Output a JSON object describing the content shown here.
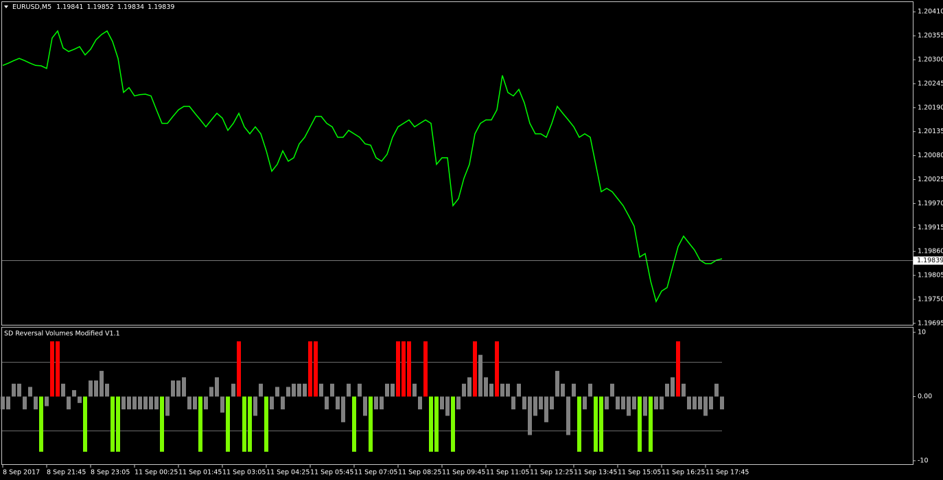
{
  "chart_data": [
    {
      "type": "line",
      "symbol": "EURUSD,M5",
      "ohlc": [
        1.19841,
        1.19852,
        1.19834,
        1.19839
      ],
      "color": "#00ff00",
      "values": [
        1.20287,
        1.20292,
        1.20298,
        1.20303,
        1.20298,
        1.20292,
        1.20287,
        1.20286,
        1.2028,
        1.2035,
        1.20366,
        1.20327,
        1.20319,
        1.20324,
        1.2033,
        1.20311,
        1.20324,
        1.20346,
        1.20358,
        1.20366,
        1.20342,
        1.20303,
        1.20225,
        1.20236,
        1.20217,
        1.2022,
        1.20221,
        1.20217,
        1.20185,
        1.20154,
        1.20154,
        1.2017,
        1.20185,
        1.20193,
        1.20193,
        1.20177,
        1.20162,
        1.20146,
        1.20162,
        1.20177,
        1.20166,
        1.20138,
        1.20154,
        1.20177,
        1.20146,
        1.2013,
        1.20146,
        1.2013,
        1.20091,
        1.20044,
        1.2006,
        1.20091,
        1.20067,
        1.20075,
        1.20107,
        1.20122,
        1.20146,
        1.2017,
        1.2017,
        1.20154,
        1.20146,
        1.20122,
        1.20122,
        1.20138,
        1.2013,
        1.20122,
        1.20107,
        1.20104,
        1.20075,
        1.20067,
        1.20083,
        1.20122,
        1.20146,
        1.20154,
        1.20162,
        1.20146,
        1.20154,
        1.20162,
        1.20154,
        1.2006,
        1.20075,
        1.20075,
        1.19965,
        1.19981,
        1.20028,
        1.2006,
        1.2013,
        1.20154,
        1.20162,
        1.20162,
        1.20185,
        1.20264,
        1.20225,
        1.20217,
        1.20232,
        1.20201,
        1.20154,
        1.2013,
        1.2013,
        1.20122,
        1.20154,
        1.20193,
        1.20177,
        1.20162,
        1.20146,
        1.20122,
        1.2013,
        1.20122,
        1.2006,
        1.19997,
        1.20005,
        1.19997,
        1.19981,
        1.19965,
        1.19942,
        1.19918,
        1.19847,
        1.19855,
        1.19792,
        1.19745,
        1.19769,
        1.19777,
        1.19824,
        1.19871,
        1.19895,
        1.19879,
        1.19863,
        1.1984,
        1.19832,
        1.19832,
        1.1984,
        1.19843
      ],
      "current_price": 1.19839,
      "ylim": [
        1.1969,
        1.20434
      ],
      "yticks": [
        {
          "value": 1.2041,
          "label": "1.20410"
        },
        1.20355,
        {
          "value": 1.203,
          "label": "1.20300"
        },
        1.20245,
        {
          "value": 1.2019,
          "label": "1.20190"
        },
        1.20135,
        {
          "value": 1.2008,
          "label": "1.20080"
        },
        1.20025,
        {
          "value": 1.1997,
          "label": "1.19970"
        },
        1.19915,
        {
          "value": 1.1986,
          "label": "1.19860"
        },
        1.19805,
        {
          "value": 1.1975,
          "label": "1.19750"
        },
        1.19695
      ]
    },
    {
      "type": "bar",
      "title": "SD Reversal Volumes Modified V1.1",
      "ylim": [
        -10.65,
        10.75
      ],
      "yticks": [
        10,
        {
          "value": 0,
          "label": "0.00"
        },
        -10
      ],
      "levels": [
        5.35,
        -5.35
      ],
      "x_labels": [
        "8 Sep 2017",
        "8 Sep 21:45",
        "8 Sep 23:05",
        "11 Sep 00:25",
        "11 Sep 01:45",
        "11 Sep 03:05",
        "11 Sep 04:25",
        "11 Sep 05:45",
        "11 Sep 07:05",
        "11 Sep 08:25",
        "11 Sep 09:45",
        "11 Sep 11:05",
        "11 Sep 12:25",
        "11 Sep 13:45",
        "11 Sep 15:05",
        "11 Sep 16:25",
        "11 Sep 17:45"
      ],
      "series": [
        {
          "color": "#808080",
          "values": [
            -2,
            -2,
            2,
            2,
            -2,
            1.5,
            -2,
            null,
            -1.5,
            null,
            null,
            2,
            -2,
            1,
            -1,
            null,
            2.5,
            2.5,
            4,
            2,
            null,
            null,
            -2,
            -2,
            -2,
            -2,
            -2,
            -2,
            -2,
            null,
            -3,
            2.5,
            2.5,
            3,
            -2,
            -2,
            null,
            -2,
            1.5,
            3,
            -2.5,
            null,
            2,
            null,
            null,
            null,
            -3,
            2,
            null,
            -2,
            1.5,
            -2,
            1.5,
            2,
            2,
            2,
            null,
            null,
            2,
            -2,
            2,
            -2,
            -4,
            2,
            null,
            2,
            -3,
            null,
            -2,
            -2,
            2,
            2,
            null,
            null,
            null,
            2,
            -2,
            null,
            null,
            null,
            -2,
            -3,
            null,
            -2,
            2,
            3,
            null,
            6.5,
            3,
            2,
            null,
            2,
            2,
            -2,
            2,
            -2,
            -6,
            -3,
            -2,
            -4,
            -2,
            4,
            2,
            -6,
            2,
            null,
            -2,
            2,
            null,
            null,
            -2,
            2,
            -2,
            -2,
            -3,
            -2,
            null,
            -3,
            null,
            -2,
            -2,
            2,
            3,
            null,
            2,
            -2,
            -2,
            -2,
            -3,
            -2,
            2,
            -2
          ]
        },
        {
          "color": "#ff0000",
          "values": [
            null,
            null,
            null,
            null,
            null,
            null,
            null,
            null,
            null,
            8.6,
            8.6,
            null,
            null,
            null,
            null,
            null,
            null,
            null,
            null,
            null,
            null,
            null,
            null,
            null,
            null,
            null,
            null,
            null,
            null,
            null,
            null,
            null,
            null,
            null,
            null,
            null,
            null,
            null,
            null,
            null,
            null,
            null,
            null,
            8.6,
            null,
            null,
            null,
            null,
            null,
            null,
            null,
            null,
            null,
            null,
            null,
            null,
            8.6,
            8.6,
            null,
            null,
            null,
            null,
            null,
            null,
            null,
            null,
            null,
            null,
            null,
            null,
            null,
            null,
            8.6,
            8.6,
            8.6,
            null,
            null,
            8.6,
            null,
            null,
            null,
            null,
            null,
            null,
            null,
            null,
            8.6,
            null,
            null,
            null,
            8.6,
            null,
            null,
            null,
            null,
            null,
            null,
            null,
            null,
            null,
            null,
            null,
            null,
            null,
            null,
            null,
            null,
            null,
            null,
            null,
            null,
            null,
            null,
            null,
            null,
            null,
            null,
            null,
            null,
            null,
            null,
            null,
            null,
            8.6,
            null,
            null,
            null,
            null,
            null,
            null,
            null,
            null
          ]
        },
        {
          "color": "#7cfc00",
          "values": [
            null,
            null,
            null,
            null,
            null,
            null,
            null,
            -8.6,
            null,
            null,
            null,
            null,
            null,
            null,
            null,
            -8.6,
            null,
            null,
            null,
            null,
            -8.6,
            -8.6,
            null,
            null,
            null,
            null,
            null,
            null,
            null,
            -8.6,
            null,
            null,
            null,
            null,
            null,
            null,
            -8.6,
            null,
            null,
            null,
            null,
            -8.6,
            null,
            null,
            -8.6,
            -8.6,
            null,
            null,
            -8.6,
            null,
            null,
            null,
            null,
            null,
            null,
            null,
            null,
            null,
            null,
            null,
            null,
            null,
            null,
            null,
            -8.6,
            null,
            null,
            -8.6,
            null,
            null,
            null,
            null,
            null,
            null,
            null,
            null,
            null,
            null,
            -8.6,
            -8.6,
            null,
            null,
            -8.6,
            null,
            null,
            null,
            null,
            null,
            null,
            null,
            null,
            null,
            null,
            null,
            null,
            null,
            null,
            null,
            null,
            null,
            null,
            null,
            null,
            null,
            null,
            -8.6,
            null,
            null,
            -8.6,
            -8.6,
            null,
            null,
            null,
            null,
            null,
            null,
            -8.6,
            null,
            -8.6,
            null,
            null,
            null,
            null,
            null,
            null,
            null,
            null,
            null,
            null,
            null,
            null,
            null
          ]
        }
      ]
    }
  ]
}
